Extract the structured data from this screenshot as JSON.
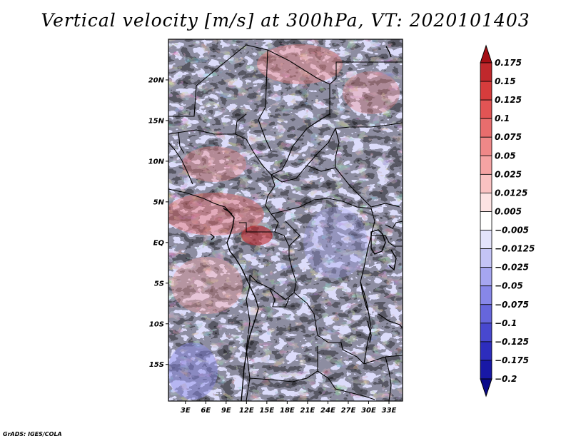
{
  "title": "Vertical velocity [m/s] at 300hPa, VT: 2020101403",
  "credit": "GrADS: IGES/COLA",
  "map": {
    "lat_labels": [
      "20N",
      "15N",
      "10N",
      "5N",
      "EQ",
      "5S",
      "10S",
      "15S"
    ],
    "lon_labels": [
      "3E",
      "6E",
      "9E",
      "12E",
      "15E",
      "18E",
      "21E",
      "24E",
      "27E",
      "30E",
      "33E"
    ],
    "lat_values": [
      20,
      15,
      10,
      5,
      0,
      -5,
      -10,
      -15
    ],
    "lon_values": [
      3,
      6,
      9,
      12,
      15,
      18,
      21,
      24,
      27,
      30,
      33
    ],
    "lon_range": [
      0.5,
      35
    ],
    "lat_range": [
      -19.5,
      25
    ]
  },
  "colorbar": {
    "labels": [
      "0.175",
      "0.15",
      "0.125",
      "0.1",
      "0.075",
      "0.05",
      "0.025",
      "0.0125",
      "0.005",
      "−0.005",
      "−0.0125",
      "−0.025",
      "−0.05",
      "−0.075",
      "−0.1",
      "−0.125",
      "−0.175",
      "−0.2"
    ],
    "colors": [
      "#a50f15",
      "#c0282c",
      "#d63c3c",
      "#e25454",
      "#e86d6d",
      "#ef8888",
      "#f5a3a3",
      "#fac2c2",
      "#fde3e3",
      "#ffffff",
      "#e3e3fb",
      "#c4c4f6",
      "#a6a6f0",
      "#8787e8",
      "#6666dc",
      "#4848cf",
      "#2d2dbd",
      "#1818a6",
      "#0a0a8a"
    ]
  }
}
